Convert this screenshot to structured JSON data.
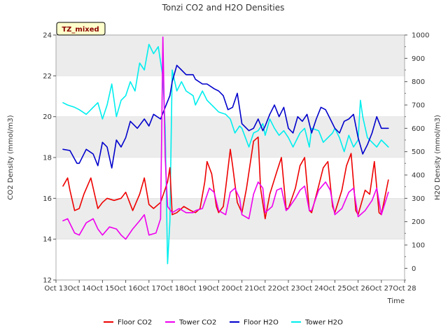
{
  "chart_data": {
    "type": "line",
    "title": "Tonzi CO2 and H2O Densities",
    "annotation": "TZ_mixed",
    "xlabel": "Time",
    "ylabel_left": "CO2 Density (mmol/m3)",
    "ylabel_right": "H2O Density (mmol/m3)",
    "x_ticks": [
      "Oct 13",
      "Oct 14",
      "Oct 15",
      "Oct 16",
      "Oct 17",
      "Oct 18",
      "Oct 19",
      "Oct 20",
      "Oct 21",
      "Oct 22",
      "Oct 23",
      "Oct 24",
      "Oct 25",
      "Oct 26",
      "Oct 27",
      "Oct 28"
    ],
    "xlim": [
      13,
      28
    ],
    "ylim_left": [
      12,
      24
    ],
    "yticks_left": [
      12,
      14,
      16,
      18,
      20,
      22,
      24
    ],
    "ylim_right": [
      -50,
      1000
    ],
    "yticks_right": [
      0,
      100,
      200,
      300,
      400,
      500,
      600,
      700,
      800,
      900,
      1000
    ],
    "grid": false,
    "background_bands": true,
    "legend_position": "bottom-center",
    "series": [
      {
        "name": "Floor CO2",
        "axis": "left",
        "color": "#ee0000",
        "x": [
          13.3,
          13.5,
          13.6,
          13.8,
          14.0,
          14.2,
          14.5,
          14.8,
          15.0,
          15.2,
          15.5,
          15.8,
          16.0,
          16.3,
          16.6,
          16.8,
          17.0,
          17.2,
          17.5,
          17.8,
          17.9,
          18.0,
          18.2,
          18.5,
          18.8,
          19.0,
          19.2,
          19.4,
          19.5,
          19.7,
          19.9,
          20.0,
          20.2,
          20.3,
          20.5,
          20.6,
          20.8,
          21.0,
          21.2,
          21.5,
          21.7,
          21.8,
          22.0,
          22.2,
          22.5,
          22.7,
          22.9,
          23.0,
          23.3,
          23.5,
          23.7,
          23.9,
          24.0,
          24.3,
          24.5,
          24.7,
          24.9,
          25.0,
          25.3,
          25.5,
          25.7,
          25.9,
          26.0,
          26.3,
          26.5,
          26.7,
          26.9,
          27.0,
          27.3
        ],
        "y": [
          16.6,
          17.0,
          16.4,
          15.4,
          15.5,
          16.2,
          17.0,
          15.5,
          15.8,
          16.0,
          15.9,
          16.0,
          16.3,
          15.4,
          16.2,
          17.0,
          15.7,
          15.5,
          15.8,
          16.8,
          17.5,
          15.2,
          15.3,
          15.6,
          15.4,
          15.3,
          15.5,
          16.8,
          17.8,
          17.2,
          15.6,
          15.3,
          15.6,
          16.5,
          18.4,
          17.6,
          15.8,
          15.3,
          16.5,
          18.8,
          19.0,
          16.5,
          15.0,
          16.2,
          17.3,
          18.0,
          15.5,
          15.5,
          16.5,
          17.6,
          18.0,
          15.4,
          15.3,
          16.6,
          17.5,
          17.8,
          15.6,
          15.3,
          16.4,
          17.6,
          18.2,
          15.4,
          15.2,
          16.4,
          16.2,
          17.8,
          15.3,
          15.2,
          16.9
        ]
      },
      {
        "name": "Tower CO2",
        "axis": "left",
        "color": "#ee00ee",
        "x": [
          13.3,
          13.5,
          13.8,
          14.0,
          14.3,
          14.6,
          14.8,
          15.0,
          15.3,
          15.6,
          15.8,
          16.0,
          16.3,
          16.6,
          16.8,
          17.0,
          17.3,
          17.5,
          17.6,
          17.7,
          17.8,
          18.0,
          18.3,
          18.6,
          18.9,
          19.0,
          19.3,
          19.6,
          19.8,
          20.0,
          20.3,
          20.5,
          20.7,
          20.9,
          21.0,
          21.3,
          21.5,
          21.7,
          21.9,
          22.0,
          22.3,
          22.5,
          22.7,
          22.9,
          23.0,
          23.3,
          23.5,
          23.7,
          23.9,
          24.0,
          24.3,
          24.6,
          24.8,
          25.0,
          25.3,
          25.6,
          25.8,
          26.0,
          26.3,
          26.6,
          26.8,
          27.0,
          27.3
        ],
        "y": [
          14.9,
          15.0,
          14.3,
          14.2,
          14.8,
          15.0,
          14.5,
          14.2,
          14.6,
          14.5,
          14.2,
          14.0,
          14.5,
          14.9,
          15.2,
          14.2,
          14.3,
          15.0,
          23.9,
          18.0,
          15.6,
          15.3,
          15.5,
          15.3,
          15.3,
          15.4,
          15.5,
          16.5,
          16.3,
          15.4,
          15.2,
          16.3,
          16.5,
          16.0,
          15.2,
          15.0,
          16.2,
          16.8,
          16.5,
          15.3,
          15.6,
          16.4,
          16.5,
          15.4,
          15.5,
          16.0,
          16.4,
          16.6,
          15.4,
          15.4,
          16.4,
          16.8,
          16.4,
          15.2,
          15.5,
          16.3,
          16.5,
          15.1,
          15.4,
          15.9,
          16.5,
          15.2,
          16.3
        ]
      },
      {
        "name": "Floor H2O",
        "axis": "right",
        "color": "#0000cc",
        "x": [
          13.3,
          13.6,
          13.9,
          14.0,
          14.3,
          14.6,
          14.8,
          15.0,
          15.2,
          15.4,
          15.6,
          15.8,
          16.0,
          16.2,
          16.5,
          16.8,
          17.0,
          17.2,
          17.5,
          17.7,
          17.9,
          18.0,
          18.2,
          18.4,
          18.6,
          18.9,
          19.0,
          19.3,
          19.5,
          19.8,
          20.0,
          20.2,
          20.4,
          20.6,
          20.8,
          21.0,
          21.3,
          21.5,
          21.7,
          21.9,
          22.0,
          22.2,
          22.4,
          22.6,
          22.8,
          23.0,
          23.2,
          23.4,
          23.6,
          23.8,
          24.0,
          24.2,
          24.4,
          24.6,
          24.8,
          25.0,
          25.2,
          25.4,
          25.6,
          25.8,
          26.0,
          26.2,
          26.4,
          26.6,
          26.8,
          27.0,
          27.3
        ],
        "y": [
          510,
          505,
          450,
          450,
          510,
          490,
          440,
          540,
          520,
          430,
          550,
          520,
          560,
          630,
          600,
          640,
          610,
          660,
          640,
          690,
          740,
          800,
          870,
          850,
          830,
          830,
          810,
          790,
          790,
          770,
          760,
          740,
          680,
          690,
          750,
          620,
          590,
          600,
          640,
          590,
          610,
          660,
          700,
          650,
          690,
          600,
          580,
          650,
          630,
          660,
          580,
          640,
          690,
          680,
          640,
          600,
          580,
          630,
          640,
          660,
          560,
          490,
          530,
          580,
          650,
          600,
          600
        ]
      },
      {
        "name": "Tower H2O",
        "axis": "right",
        "color": "#00eeee",
        "x": [
          13.3,
          13.5,
          13.8,
          14.0,
          14.3,
          14.6,
          14.8,
          15.0,
          15.2,
          15.4,
          15.6,
          15.8,
          16.0,
          16.2,
          16.4,
          16.6,
          16.8,
          17.0,
          17.2,
          17.4,
          17.6,
          17.7,
          17.8,
          17.9,
          18.0,
          18.2,
          18.4,
          18.6,
          18.9,
          19.0,
          19.3,
          19.5,
          19.8,
          20.0,
          20.3,
          20.5,
          20.7,
          20.9,
          21.0,
          21.3,
          21.5,
          21.7,
          21.9,
          22.0,
          22.2,
          22.4,
          22.6,
          22.8,
          23.0,
          23.2,
          23.5,
          23.7,
          23.9,
          24.0,
          24.3,
          24.5,
          24.7,
          24.9,
          25.0,
          25.2,
          25.4,
          25.6,
          25.8,
          26.0,
          26.1,
          26.2,
          26.4,
          26.6,
          26.8,
          27.0,
          27.3
        ],
        "y": [
          710,
          700,
          690,
          680,
          660,
          690,
          710,
          640,
          700,
          790,
          650,
          720,
          740,
          800,
          760,
          880,
          850,
          960,
          920,
          950,
          820,
          600,
          20,
          200,
          850,
          760,
          800,
          760,
          740,
          700,
          760,
          720,
          690,
          670,
          660,
          640,
          580,
          610,
          600,
          520,
          580,
          590,
          620,
          570,
          640,
          600,
          570,
          590,
          560,
          520,
          580,
          600,
          520,
          600,
          590,
          540,
          560,
          580,
          600,
          560,
          500,
          570,
          520,
          550,
          720,
          650,
          560,
          540,
          520,
          550,
          520
        ]
      }
    ]
  }
}
